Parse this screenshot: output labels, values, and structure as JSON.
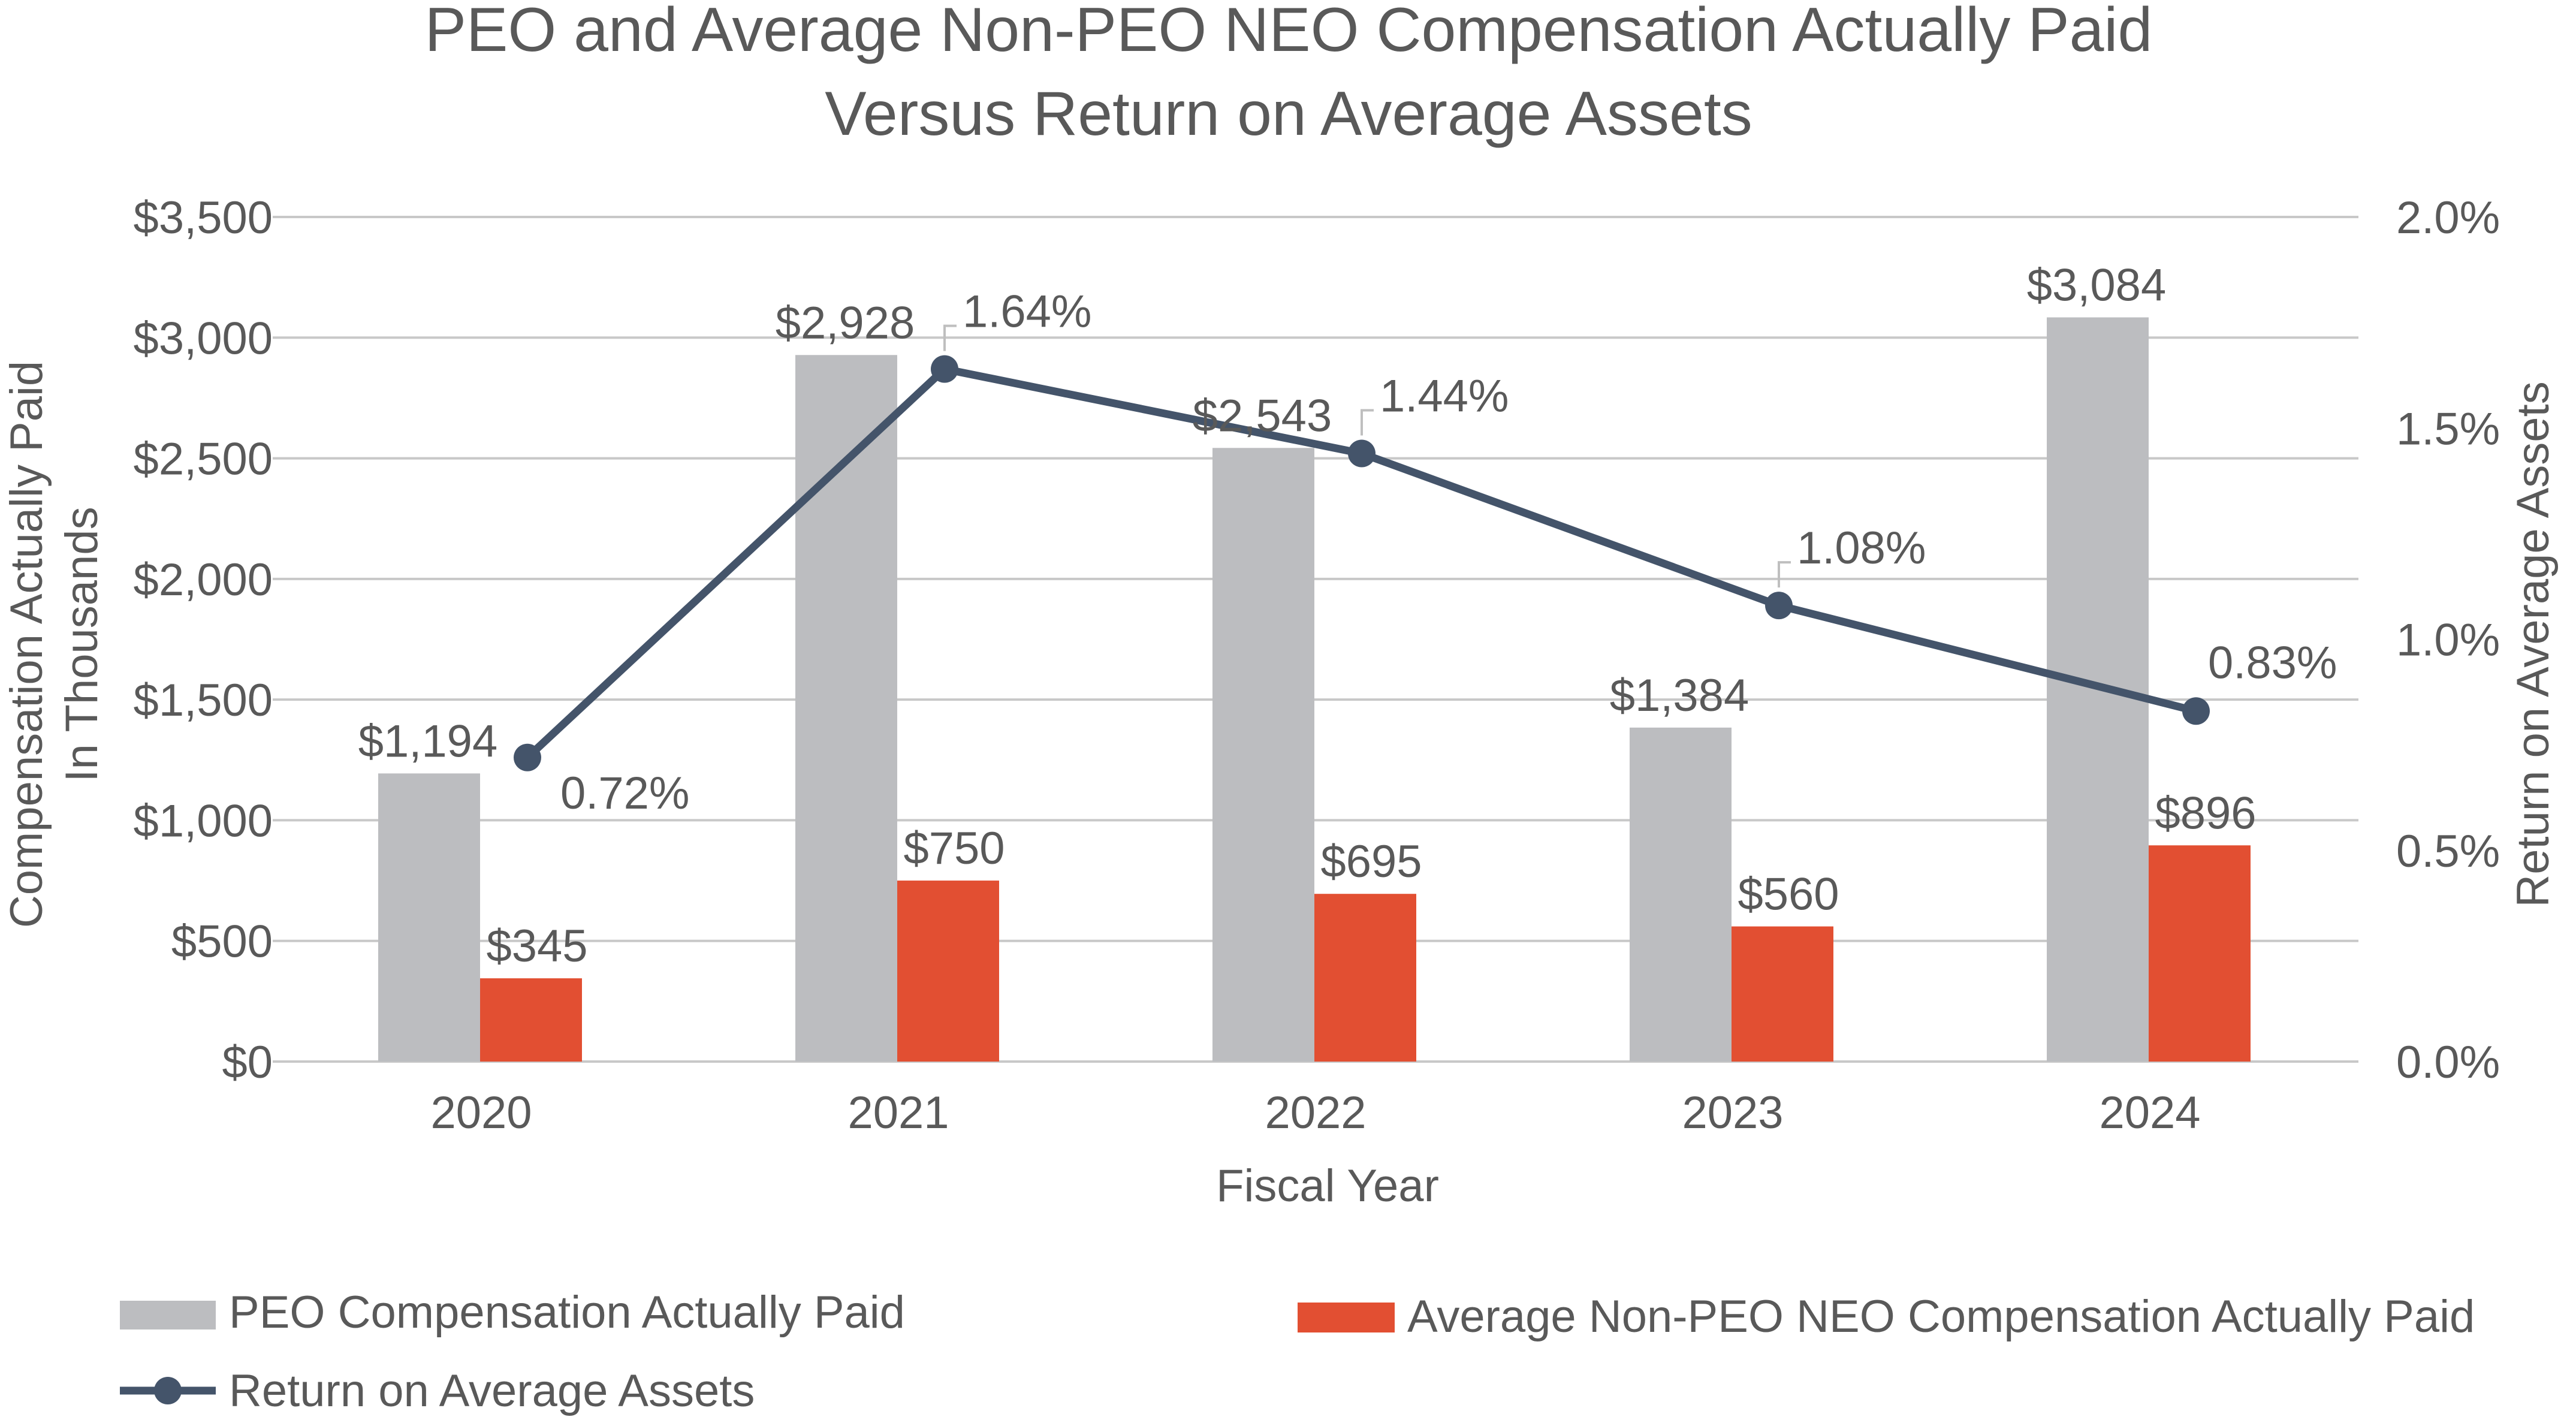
{
  "chart_data": {
    "type": "bar",
    "title_lines": [
      "PEO and Average Non-PEO NEO Compensation Actually Paid",
      "Versus Return on Average Assets"
    ],
    "xlabel": "Fiscal Year",
    "ylabel_left_lines": [
      "Compensation Actually Paid",
      "In Thousands"
    ],
    "ylabel_right": "Return on Average Assets",
    "categories": [
      "2020",
      "2021",
      "2022",
      "2023",
      "2024"
    ],
    "ylim_left": [
      0,
      3500
    ],
    "yticks_left": [
      "$0",
      "$500",
      "$1,000",
      "$1,500",
      "$2,000",
      "$2,500",
      "$3,000",
      "$3,500"
    ],
    "ylim_right": [
      0,
      2.0
    ],
    "yticks_right": [
      "0.0%",
      "0.5%",
      "1.0%",
      "1.5%",
      "2.0%"
    ],
    "grid": true,
    "series": [
      {
        "name": "PEO Compensation Actually Paid",
        "kind": "bar",
        "axis": "left",
        "color": "#bcbdc0",
        "values": [
          1194,
          2928,
          2543,
          1384,
          3084
        ],
        "labels": [
          "$1,194",
          "$2,928",
          "$2,543",
          "$1,384",
          "$3,084"
        ]
      },
      {
        "name": "Average Non-PEO NEO Compensation Actually Paid",
        "kind": "bar",
        "axis": "left",
        "color": "#e24f32",
        "values": [
          345,
          750,
          695,
          560,
          896
        ],
        "labels": [
          "$345",
          "$750",
          "$695",
          "$560",
          "$896"
        ]
      },
      {
        "name": "Return on Average Assets",
        "kind": "line",
        "axis": "right",
        "color": "#44546a",
        "values": [
          0.72,
          1.64,
          1.44,
          1.08,
          0.83
        ],
        "labels": [
          "0.72%",
          "1.64%",
          "1.44%",
          "1.08%",
          "0.83%"
        ]
      }
    ],
    "legend_position": "bottom"
  }
}
